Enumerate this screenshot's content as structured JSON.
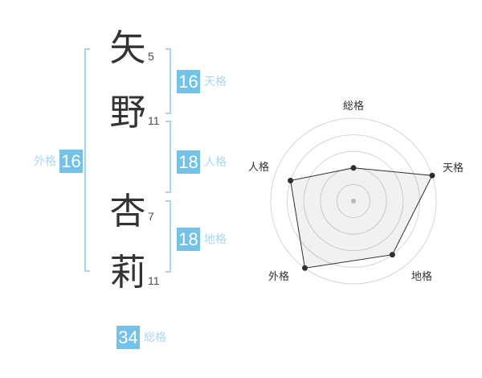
{
  "name": {
    "chars": [
      {
        "char": "矢",
        "strokes": "5"
      },
      {
        "char": "野",
        "strokes": "11"
      },
      {
        "char": "杏",
        "strokes": "7"
      },
      {
        "char": "莉",
        "strokes": "11"
      }
    ]
  },
  "gokaku": {
    "gaikaku": {
      "label": "外格",
      "value": "16"
    },
    "tenkaku": {
      "label": "天格",
      "value": "16"
    },
    "jinkaku": {
      "label": "人格",
      "value": "18"
    },
    "chikaku": {
      "label": "地格",
      "value": "18"
    },
    "soukaku": {
      "label": "総格",
      "value": "34"
    }
  },
  "colors": {
    "accent_box": "#74c2ea",
    "accent_label": "#a6d7f4",
    "bracket": "#a9d5f1",
    "text_dark": "#333333",
    "grid": "#d4d4d4",
    "radar_line": "#2e2e2e",
    "radar_fill": "rgba(0,0,0,0.055)",
    "center_dot": "#c3c3c3"
  },
  "chart_data": {
    "type": "radar",
    "categories": [
      "総格",
      "天格",
      "地格",
      "外格",
      "人格"
    ],
    "values": [
      2,
      5,
      4,
      5,
      4
    ],
    "max": 5,
    "rings": 5,
    "start_angle_deg": -90,
    "direction": "clockwise",
    "grid": "circular-rings-no-spokes",
    "legend": false,
    "title": ""
  }
}
